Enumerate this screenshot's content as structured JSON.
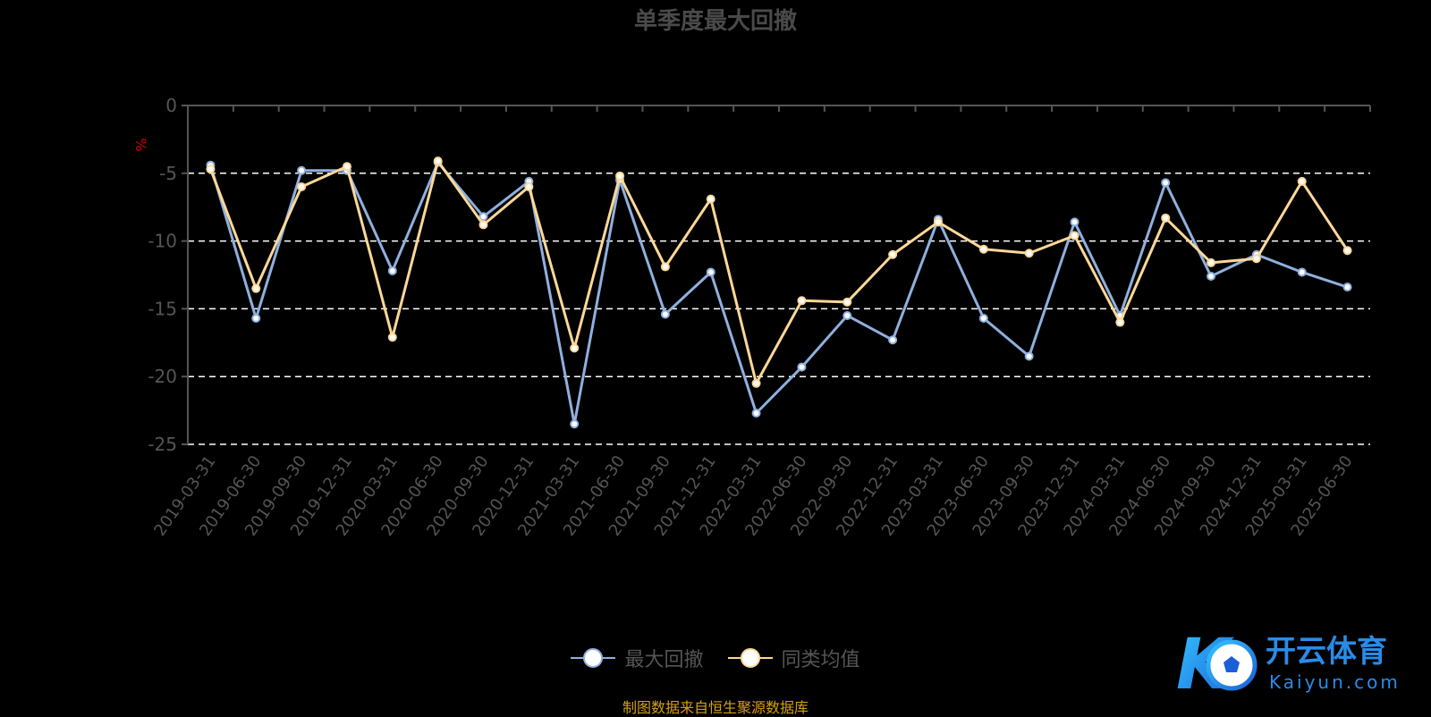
{
  "chart_data": {
    "type": "line",
    "title": "单季度最大回撤",
    "ylabel": "%",
    "ylim": [
      -25,
      0
    ],
    "yticks": [
      0,
      -5,
      -10,
      -15,
      -20,
      -25
    ],
    "grid": "dashed horizontal",
    "legend_position": "bottom",
    "categories": [
      "2019-03-31",
      "2019-06-30",
      "2019-09-30",
      "2019-12-31",
      "2020-03-31",
      "2020-06-30",
      "2020-09-30",
      "2020-12-31",
      "2021-03-31",
      "2021-06-30",
      "2021-09-30",
      "2021-12-31",
      "2022-03-31",
      "2022-06-30",
      "2022-09-30",
      "2022-12-31",
      "2023-03-31",
      "2023-06-30",
      "2023-09-30",
      "2023-12-31",
      "2024-03-31",
      "2024-06-30",
      "2024-09-30",
      "2024-12-31",
      "2025-03-31",
      "2025-06-30"
    ],
    "series": [
      {
        "name": "最大回撤",
        "color": "#8fb0de",
        "values": [
          -4.4,
          -15.7,
          -4.8,
          -4.8,
          -12.2,
          -4.2,
          -8.2,
          -5.6,
          -23.5,
          -5.5,
          -15.4,
          -12.3,
          -22.7,
          -19.3,
          -15.5,
          -17.3,
          -8.4,
          -15.7,
          -18.5,
          -8.6,
          -15.5,
          -5.7,
          -12.6,
          -11.0,
          -12.3,
          -13.4
        ]
      },
      {
        "name": "同类均值",
        "color": "#ffd898",
        "values": [
          -4.7,
          -13.5,
          -6.0,
          -4.5,
          -17.1,
          -4.1,
          -8.8,
          -6.0,
          -17.9,
          -5.2,
          -11.9,
          -6.9,
          -20.5,
          -14.4,
          -14.5,
          -11.0,
          -8.6,
          -10.6,
          -10.9,
          -9.6,
          -16.0,
          -8.3,
          -11.6,
          -11.3,
          -5.6,
          -10.7
        ]
      }
    ]
  },
  "source_note": "制图数据来自恒生聚源数据库",
  "logo": {
    "text": "开云体育",
    "subtext": "Kaiyun.com",
    "mark": "K"
  }
}
